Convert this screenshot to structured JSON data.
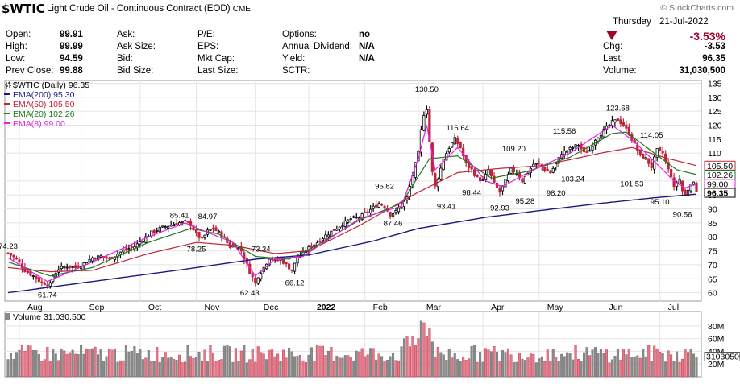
{
  "header": {
    "symbol": "$WTIC",
    "description": "Light Crude Oil - Continuous Contract (EOD)",
    "exchange": "CME",
    "brand": "© StockCharts.com",
    "day": "Thursday",
    "date": "21-Jul-2022",
    "change_pct": "-3.53%",
    "quotes": [
      [
        {
          "k": "Open:",
          "v": "99.91"
        },
        {
          "k": "Ask:",
          "v": ""
        },
        {
          "k": "P/E:",
          "v": ""
        },
        {
          "k": "Options:",
          "v": "no"
        }
      ],
      [
        {
          "k": "High:",
          "v": "99.99"
        },
        {
          "k": "Ask Size:",
          "v": ""
        },
        {
          "k": "EPS:",
          "v": ""
        },
        {
          "k": "Annual Dividend:",
          "v": "N/A"
        }
      ],
      [
        {
          "k": "Low:",
          "v": "94.59"
        },
        {
          "k": "Bid:",
          "v": ""
        },
        {
          "k": "Mkt Cap:",
          "v": ""
        },
        {
          "k": "Yield:",
          "v": "N/A"
        }
      ],
      [
        {
          "k": "Prev Close:",
          "v": "99.88"
        },
        {
          "k": "Bid Size:",
          "v": ""
        },
        {
          "k": "Last Size:",
          "v": ""
        },
        {
          "k": "SCTR:",
          "v": ""
        }
      ]
    ],
    "right_quotes": [
      {
        "k": "Chg:",
        "v": "-3.53"
      },
      {
        "k": "Last:",
        "v": "96.35"
      },
      {
        "k": "Volume:",
        "v": "31,030,500"
      }
    ]
  },
  "chart_data": {
    "type": "line",
    "legend": [
      {
        "name": "$WTIC (Daily) 96.35",
        "color": "#000000"
      },
      {
        "name": "EMA(200) 95.30",
        "color": "#1a1a80"
      },
      {
        "name": "EMA(50) 105.50",
        "color": "#c0243a"
      },
      {
        "name": "EMA(20) 102.26",
        "color": "#1f7a1f"
      },
      {
        "name": "EMA(8) 99.00",
        "color": "#e020e0"
      }
    ],
    "price_axis": {
      "ticks": [
        60,
        65,
        70,
        75,
        80,
        85,
        90,
        95,
        100,
        105,
        110,
        115,
        120,
        125,
        130,
        135
      ],
      "ylim": [
        57,
        136
      ]
    },
    "x_months": [
      "Aug",
      "Sep",
      "Oct",
      "Nov",
      "Dec",
      "2022",
      "Feb",
      "Mar",
      "Apr",
      "May",
      "Jun",
      "Jul"
    ],
    "month_index": [
      4,
      26,
      47,
      67,
      88,
      107,
      127,
      146,
      169,
      189,
      211,
      232
    ],
    "points": 246,
    "close_knots": [
      [
        0,
        74.2
      ],
      [
        3,
        72
      ],
      [
        6,
        68
      ],
      [
        9,
        66
      ],
      [
        12,
        63.5
      ],
      [
        15,
        63
      ],
      [
        16,
        66
      ],
      [
        18,
        68.5
      ],
      [
        21,
        69.5
      ],
      [
        24,
        69
      ],
      [
        27,
        70.5
      ],
      [
        30,
        72.5
      ],
      [
        33,
        73
      ],
      [
        36,
        72
      ],
      [
        39,
        74
      ],
      [
        42,
        75.5
      ],
      [
        45,
        76.5
      ],
      [
        48,
        79
      ],
      [
        51,
        81.5
      ],
      [
        54,
        83
      ],
      [
        57,
        84
      ],
      [
        60,
        85
      ],
      [
        63,
        85.2
      ],
      [
        65,
        84.5
      ],
      [
        67,
        81
      ],
      [
        69,
        79
      ],
      [
        71,
        82
      ],
      [
        73,
        83
      ],
      [
        75,
        81.5
      ],
      [
        77,
        79.5
      ],
      [
        79,
        76.5
      ],
      [
        81,
        77
      ],
      [
        83,
        75
      ],
      [
        85,
        70
      ],
      [
        86,
        67.5
      ],
      [
        87,
        65.5
      ],
      [
        88,
        63.5
      ],
      [
        89,
        66
      ],
      [
        91,
        69
      ],
      [
        93,
        72.5
      ],
      [
        95,
        71.5
      ],
      [
        97,
        72
      ],
      [
        99,
        70
      ],
      [
        101,
        68
      ],
      [
        103,
        72.5
      ],
      [
        105,
        74
      ],
      [
        107,
        76
      ],
      [
        110,
        78
      ],
      [
        113,
        80.5
      ],
      [
        116,
        82.5
      ],
      [
        119,
        84.5
      ],
      [
        122,
        86.5
      ],
      [
        125,
        87
      ],
      [
        128,
        89
      ],
      [
        130,
        90.5
      ],
      [
        132,
        92
      ],
      [
        134,
        91
      ],
      [
        136,
        88
      ],
      [
        138,
        89
      ],
      [
        140,
        91
      ],
      [
        142,
        94
      ],
      [
        144,
        102
      ],
      [
        146,
        110
      ],
      [
        147,
        118
      ],
      [
        148,
        124
      ],
      [
        149,
        126
      ],
      [
        150,
        114
      ],
      [
        151,
        103
      ],
      [
        152,
        98
      ],
      [
        153,
        101
      ],
      [
        155,
        108
      ],
      [
        157,
        112
      ],
      [
        159,
        115
      ],
      [
        161,
        112
      ],
      [
        163,
        106
      ],
      [
        165,
        104
      ],
      [
        167,
        101
      ],
      [
        169,
        100
      ],
      [
        171,
        104
      ],
      [
        173,
        99
      ],
      [
        175,
        96
      ],
      [
        177,
        100
      ],
      [
        179,
        104
      ],
      [
        181,
        103
      ],
      [
        183,
        100
      ],
      [
        185,
        103
      ],
      [
        187,
        106
      ],
      [
        189,
        106
      ],
      [
        191,
        104
      ],
      [
        193,
        103
      ],
      [
        195,
        106
      ],
      [
        197,
        110
      ],
      [
        199,
        111
      ],
      [
        201,
        112
      ],
      [
        203,
        113
      ],
      [
        205,
        110
      ],
      [
        207,
        111
      ],
      [
        209,
        115
      ],
      [
        211,
        117
      ],
      [
        213,
        119
      ],
      [
        215,
        121
      ],
      [
        217,
        122
      ],
      [
        219,
        120
      ],
      [
        221,
        117
      ],
      [
        223,
        113
      ],
      [
        225,
        109
      ],
      [
        227,
        108
      ],
      [
        229,
        105
      ],
      [
        231,
        111
      ],
      [
        233,
        110
      ],
      [
        234,
        107
      ],
      [
        235,
        104
      ],
      [
        236,
        102
      ],
      [
        237,
        97.5
      ],
      [
        238,
        99.5
      ],
      [
        239,
        100.5
      ],
      [
        240,
        96.5
      ],
      [
        241,
        95
      ],
      [
        242,
        97
      ],
      [
        243,
        99.5
      ],
      [
        244,
        99
      ],
      [
        245,
        96.35
      ]
    ],
    "ema200_knots": [
      [
        0,
        60
      ],
      [
        30,
        64
      ],
      [
        60,
        68
      ],
      [
        88,
        72
      ],
      [
        107,
        73.5
      ],
      [
        130,
        78.5
      ],
      [
        146,
        83
      ],
      [
        170,
        87
      ],
      [
        190,
        89.5
      ],
      [
        211,
        92
      ],
      [
        230,
        94
      ],
      [
        245,
        95.3
      ]
    ],
    "ema50_knots": [
      [
        0,
        69
      ],
      [
        15,
        67.5
      ],
      [
        30,
        68
      ],
      [
        50,
        74
      ],
      [
        67,
        78
      ],
      [
        80,
        77
      ],
      [
        95,
        74
      ],
      [
        107,
        75
      ],
      [
        125,
        84
      ],
      [
        146,
        96
      ],
      [
        160,
        103
      ],
      [
        175,
        104.5
      ],
      [
        190,
        105.5
      ],
      [
        211,
        110
      ],
      [
        222,
        112
      ],
      [
        235,
        108
      ],
      [
        245,
        105.5
      ]
    ],
    "ema20_knots": [
      [
        0,
        71
      ],
      [
        15,
        66
      ],
      [
        30,
        69
      ],
      [
        50,
        78
      ],
      [
        65,
        83
      ],
      [
        75,
        81
      ],
      [
        88,
        73
      ],
      [
        100,
        72
      ],
      [
        110,
        77
      ],
      [
        125,
        86
      ],
      [
        140,
        92
      ],
      [
        150,
        108
      ],
      [
        160,
        109
      ],
      [
        172,
        101
      ],
      [
        185,
        103.5
      ],
      [
        200,
        108.5
      ],
      [
        215,
        117
      ],
      [
        220,
        117.5
      ],
      [
        230,
        110
      ],
      [
        238,
        104
      ],
      [
        245,
        102.3
      ]
    ],
    "ema8_knots": [
      [
        0,
        72.5
      ],
      [
        14,
        64
      ],
      [
        30,
        71
      ],
      [
        50,
        80
      ],
      [
        63,
        85
      ],
      [
        70,
        82
      ],
      [
        80,
        78
      ],
      [
        88,
        66
      ],
      [
        95,
        72
      ],
      [
        105,
        73
      ],
      [
        125,
        86.5
      ],
      [
        140,
        91
      ],
      [
        146,
        108
      ],
      [
        149,
        120
      ],
      [
        152,
        104
      ],
      [
        160,
        112
      ],
      [
        170,
        100
      ],
      [
        176,
        98
      ],
      [
        185,
        103
      ],
      [
        200,
        110
      ],
      [
        215,
        120
      ],
      [
        223,
        114
      ],
      [
        230,
        107
      ],
      [
        237,
        100
      ],
      [
        241,
        97.5
      ],
      [
        245,
        99
      ]
    ],
    "annotations": [
      {
        "t": "74.23",
        "i": 0,
        "y": 74.23,
        "pos": "above"
      },
      {
        "t": "61.74",
        "i": 14,
        "y": 61.74,
        "pos": "below"
      },
      {
        "t": "85.41",
        "i": 61,
        "y": 85.41,
        "pos": "above"
      },
      {
        "t": "84.97",
        "i": 71,
        "y": 84.97,
        "pos": "above"
      },
      {
        "t": "78.25",
        "i": 67,
        "y": 78.25,
        "pos": "below"
      },
      {
        "t": "73.34",
        "i": 90,
        "y": 73.34,
        "pos": "above"
      },
      {
        "t": "62.43",
        "i": 86,
        "y": 62.43,
        "pos": "below"
      },
      {
        "t": "66.12",
        "i": 102,
        "y": 66.12,
        "pos": "below"
      },
      {
        "t": "95.82",
        "i": 134,
        "y": 95.82,
        "pos": "above"
      },
      {
        "t": "87.46",
        "i": 137,
        "y": 87.46,
        "pos": "below"
      },
      {
        "t": "130.50",
        "i": 149,
        "y": 130.5,
        "pos": "above"
      },
      {
        "t": "116.64",
        "i": 160,
        "y": 116.64,
        "pos": "above"
      },
      {
        "t": "93.41",
        "i": 156,
        "y": 93.41,
        "pos": "below"
      },
      {
        "t": "98.44",
        "i": 165,
        "y": 98.44,
        "pos": "below"
      },
      {
        "t": "109.20",
        "i": 180,
        "y": 109.2,
        "pos": "above"
      },
      {
        "t": "92.93",
        "i": 175,
        "y": 92.93,
        "pos": "below"
      },
      {
        "t": "95.28",
        "i": 184,
        "y": 95.28,
        "pos": "below"
      },
      {
        "t": "98.20",
        "i": 195,
        "y": 98.2,
        "pos": "below"
      },
      {
        "t": "115.56",
        "i": 198,
        "y": 115.56,
        "pos": "above"
      },
      {
        "t": "103.24",
        "i": 201,
        "y": 103.24,
        "pos": "below"
      },
      {
        "t": "123.68",
        "i": 217,
        "y": 123.68,
        "pos": "above"
      },
      {
        "t": "114.05",
        "i": 229,
        "y": 114.05,
        "pos": "above"
      },
      {
        "t": "101.53",
        "i": 222,
        "y": 101.53,
        "pos": "below"
      },
      {
        "t": "95.10",
        "i": 232,
        "y": 95.1,
        "pos": "below"
      },
      {
        "t": "90.56",
        "i": 240,
        "y": 90.56,
        "pos": "below"
      }
    ],
    "right_markers": [
      {
        "t": "105.50",
        "y": 105.5,
        "color": "#c0243a"
      },
      {
        "t": "102.26",
        "y": 102.26,
        "color": "#1f7a1f"
      },
      {
        "t": "99.00",
        "y": 99.0,
        "color": "#e020e0"
      },
      {
        "t": "96.35",
        "y": 96.35,
        "color": "#000000"
      }
    ],
    "volume": {
      "title": "Volume 31,030,500",
      "ticks": [
        {
          "t": "80M",
          "v": 80
        },
        {
          "t": "60M",
          "v": 60
        },
        {
          "t": "40M",
          "v": 40
        },
        {
          "t": "20M",
          "v": 20
        }
      ],
      "ylim": [
        0,
        95
      ],
      "last_marker": "31030500",
      "last": 31.03
    }
  }
}
